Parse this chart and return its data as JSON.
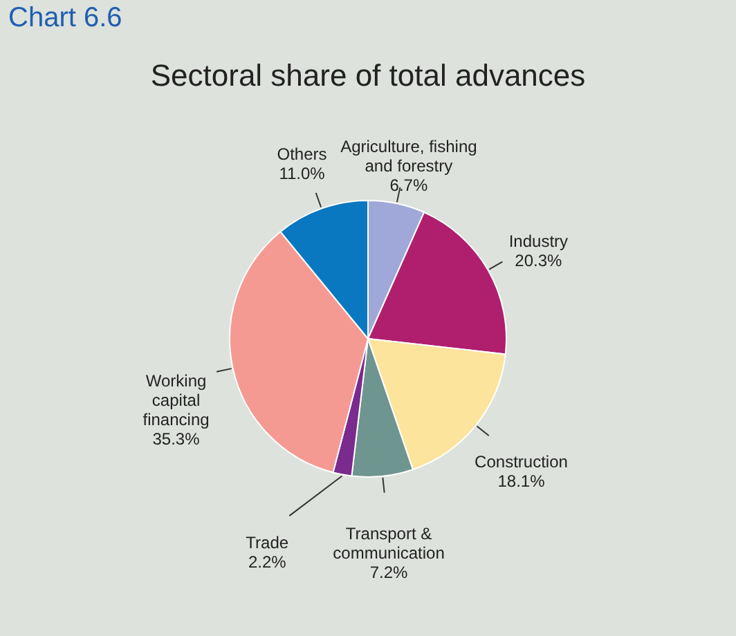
{
  "chart_data": {
    "type": "pie",
    "title": "Sectoral share of total advances",
    "annotations": [
      "Chart 6.6"
    ],
    "categories": [
      "Agriculture, fishing\nand forestry",
      "Industry",
      "Construction",
      "Transport &\ncommunication",
      "Trade",
      "Working\ncapital\nfinancing",
      "Others"
    ],
    "values": [
      6.7,
      20.3,
      18.1,
      7.2,
      2.2,
      35.3,
      11.0
    ],
    "value_labels": [
      "6.7%",
      "20.3%",
      "18.1%",
      "7.2%",
      "2.2%",
      "35.3%",
      "11.0%"
    ],
    "colors": [
      "#9fa8d8",
      "#b01f6e",
      "#fde49c",
      "#6f9590",
      "#7b2a8e",
      "#f59a93",
      "#0a78c0"
    ],
    "legend": false
  }
}
